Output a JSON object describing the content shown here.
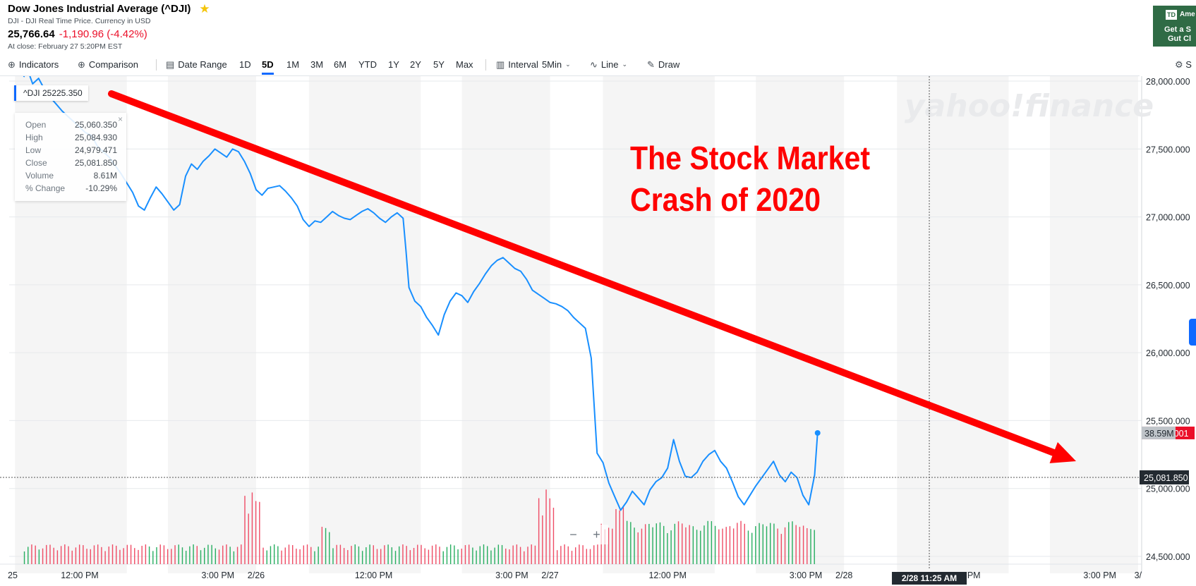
{
  "header": {
    "title": "Dow Jones Industrial Average (^DJI)",
    "subtitle": "DJI - DJI Real Time Price. Currency in USD",
    "price": "25,766.64",
    "change": "-1,190.96 (-4.42%)",
    "close_time": "At close: February 27 5:20PM EST"
  },
  "ad": {
    "logo": "TD",
    "brand": "Ame",
    "line1": "Get a S",
    "line2": "Gut Cl",
    "color": "#2f6b45"
  },
  "toolbar": {
    "indicators": "Indicators",
    "comparison": "Comparison",
    "date_range": "Date Range",
    "ranges": [
      "1D",
      "5D",
      "1M",
      "3M",
      "6M",
      "YTD",
      "1Y",
      "2Y",
      "5Y",
      "Max"
    ],
    "active_range": "5D",
    "interval_label": "Interval",
    "interval_value": "5Min",
    "line": "Line",
    "draw": "Draw",
    "settings": "S",
    "icons": [
      "plus-circle-icon",
      "calendar-icon",
      "candle-icon",
      "line-chart-icon",
      "pencil-icon",
      "gear-icon"
    ]
  },
  "symbol_pill": {
    "symbol": "^DJI",
    "value": "25225.350"
  },
  "ohlc": {
    "close_icon": "×",
    "rows": [
      {
        "label": "Open",
        "value": "25,060.350"
      },
      {
        "label": "High",
        "value": "25,084.930"
      },
      {
        "label": "Low",
        "value": "24,979.471"
      },
      {
        "label": "Close",
        "value": "25,081.850"
      },
      {
        "label": "Volume",
        "value": "8.61M"
      },
      {
        "label": "% Change",
        "value": "-10.29%"
      }
    ]
  },
  "zoom": {
    "minus": "−",
    "plus": "+"
  },
  "chart_data": {
    "type": "line",
    "watermark": "yahoo!finance",
    "annotation": [
      "The Stock Market",
      "Crash of 2020"
    ],
    "ylim": [
      24400,
      28400
    ],
    "y_ticks": [
      24500,
      25000,
      25500,
      26000,
      26500,
      27000,
      27500,
      28000
    ],
    "y_tick_labels": [
      "24,500.000",
      "25,000.000",
      "25,500.000",
      "26,000.000",
      "26,500.000",
      "27,000.000",
      "27,500.000",
      "28,000.000"
    ],
    "x_ticks": [
      {
        "t": -0.05,
        "label": "25"
      },
      {
        "t": 0.19,
        "label": "12:00 PM"
      },
      {
        "t": 0.66,
        "label": "3:00 PM"
      },
      {
        "t": 0.79,
        "label": "2/26"
      },
      {
        "t": 1.19,
        "label": "12:00 PM"
      },
      {
        "t": 1.66,
        "label": "3:00 PM"
      },
      {
        "t": 1.79,
        "label": "2/27"
      },
      {
        "t": 2.19,
        "label": "12:00 PM"
      },
      {
        "t": 2.66,
        "label": "3:00 PM"
      },
      {
        "t": 2.79,
        "label": "2/28"
      },
      {
        "t": 3.19,
        "label": "12:00 PM"
      },
      {
        "t": 3.66,
        "label": "3:00 PM"
      },
      {
        "t": 3.79,
        "label": "3/"
      }
    ],
    "shaded_bands": [
      [
        -0.03,
        0.35
      ],
      [
        0.49,
        0.79
      ],
      [
        0.97,
        1.35
      ],
      [
        1.49,
        1.79
      ],
      [
        1.97,
        2.35
      ],
      [
        2.49,
        2.79
      ],
      [
        2.97,
        3.35
      ],
      [
        3.49,
        3.79
      ]
    ],
    "crosshair": {
      "t": 3.08,
      "price": 25081.85,
      "price_label": "25,081.850",
      "time_label": "2/28 11:25 AM"
    },
    "last_price": 25409,
    "last_price_label": "25,409.001",
    "volume_label": "38.59M",
    "colors": {
      "line": "#188fff",
      "arrow": "#ff0000",
      "annotation": "#ff0000",
      "up_volume": "#27ae60",
      "down_volume": "#ef4c65",
      "band": "#f5f5f5"
    },
    "series": [
      {
        "values": [
          [
            0.0,
            28030
          ],
          [
            0.01,
            28100
          ],
          [
            0.03,
            27980
          ],
          [
            0.05,
            28020
          ],
          [
            0.07,
            27940
          ],
          [
            0.09,
            27880
          ],
          [
            0.11,
            27830
          ],
          [
            0.13,
            27780
          ],
          [
            0.15,
            27740
          ],
          [
            0.17,
            27700
          ],
          [
            0.19,
            27660
          ],
          [
            0.21,
            27620
          ],
          [
            0.23,
            27600
          ],
          [
            0.25,
            27520
          ],
          [
            0.27,
            27480
          ],
          [
            0.29,
            27440
          ],
          [
            0.31,
            27380
          ],
          [
            0.33,
            27320
          ],
          [
            0.35,
            27250
          ],
          [
            0.37,
            27180
          ],
          [
            0.39,
            27080
          ],
          [
            0.41,
            27050
          ],
          [
            0.43,
            27140
          ],
          [
            0.45,
            27220
          ],
          [
            0.47,
            27170
          ],
          [
            0.49,
            27110
          ],
          [
            0.51,
            27050
          ],
          [
            0.53,
            27090
          ],
          [
            0.55,
            27300
          ],
          [
            0.57,
            27390
          ],
          [
            0.59,
            27350
          ],
          [
            0.61,
            27410
          ],
          [
            0.63,
            27450
          ],
          [
            0.65,
            27500
          ],
          [
            0.67,
            27470
          ],
          [
            0.69,
            27440
          ],
          [
            0.71,
            27500
          ],
          [
            0.73,
            27480
          ],
          [
            0.75,
            27410
          ],
          [
            0.77,
            27320
          ],
          [
            0.79,
            27200
          ],
          [
            0.81,
            27160
          ],
          [
            0.83,
            27210
          ],
          [
            0.85,
            27220
          ],
          [
            0.87,
            27230
          ],
          [
            0.89,
            27190
          ],
          [
            0.91,
            27140
          ],
          [
            0.93,
            27080
          ],
          [
            0.95,
            26980
          ],
          [
            0.97,
            26930
          ],
          [
            0.99,
            26970
          ],
          [
            1.01,
            26960
          ],
          [
            1.03,
            27000
          ],
          [
            1.05,
            27040
          ],
          [
            1.07,
            27010
          ],
          [
            1.09,
            26990
          ],
          [
            1.11,
            26980
          ],
          [
            1.13,
            27010
          ],
          [
            1.15,
            27040
          ],
          [
            1.17,
            27060
          ],
          [
            1.19,
            27030
          ],
          [
            1.21,
            26990
          ],
          [
            1.23,
            26960
          ],
          [
            1.25,
            27000
          ],
          [
            1.27,
            27030
          ],
          [
            1.29,
            26990
          ],
          [
            1.3,
            26750
          ],
          [
            1.31,
            26480
          ],
          [
            1.33,
            26380
          ],
          [
            1.35,
            26340
          ],
          [
            1.37,
            26260
          ],
          [
            1.39,
            26200
          ],
          [
            1.41,
            26130
          ],
          [
            1.43,
            26280
          ],
          [
            1.45,
            26380
          ],
          [
            1.47,
            26440
          ],
          [
            1.49,
            26420
          ],
          [
            1.51,
            26370
          ],
          [
            1.53,
            26450
          ],
          [
            1.55,
            26510
          ],
          [
            1.57,
            26580
          ],
          [
            1.59,
            26640
          ],
          [
            1.61,
            26680
          ],
          [
            1.63,
            26700
          ],
          [
            1.65,
            26660
          ],
          [
            1.67,
            26620
          ],
          [
            1.69,
            26600
          ],
          [
            1.71,
            26540
          ],
          [
            1.73,
            26460
          ],
          [
            1.75,
            26430
          ],
          [
            1.77,
            26400
          ],
          [
            1.79,
            26370
          ],
          [
            1.81,
            26360
          ],
          [
            1.83,
            26340
          ],
          [
            1.85,
            26310
          ],
          [
            1.87,
            26260
          ],
          [
            1.89,
            26220
          ],
          [
            1.91,
            26180
          ],
          [
            1.93,
            25960
          ],
          [
            1.95,
            25260
          ],
          [
            1.97,
            25190
          ],
          [
            1.99,
            25040
          ],
          [
            2.01,
            24940
          ],
          [
            2.03,
            24840
          ],
          [
            2.05,
            24900
          ],
          [
            2.07,
            24980
          ],
          [
            2.09,
            24930
          ],
          [
            2.11,
            24880
          ],
          [
            2.13,
            24990
          ],
          [
            2.15,
            25050
          ],
          [
            2.17,
            25080
          ],
          [
            2.19,
            25150
          ],
          [
            2.21,
            25360
          ],
          [
            2.23,
            25200
          ],
          [
            2.25,
            25090
          ],
          [
            2.27,
            25080
          ],
          [
            2.29,
            25120
          ],
          [
            2.31,
            25200
          ],
          [
            2.33,
            25250
          ],
          [
            2.35,
            25280
          ],
          [
            2.37,
            25200
          ],
          [
            2.39,
            25150
          ],
          [
            2.41,
            25050
          ],
          [
            2.43,
            24940
          ],
          [
            2.45,
            24880
          ],
          [
            2.47,
            24950
          ],
          [
            2.49,
            25020
          ],
          [
            2.51,
            25080
          ],
          [
            2.53,
            25140
          ],
          [
            2.55,
            25200
          ],
          [
            2.57,
            25100
          ],
          [
            2.59,
            25050
          ],
          [
            2.61,
            25120
          ],
          [
            2.63,
            25080
          ],
          [
            2.65,
            24950
          ],
          [
            2.67,
            24880
          ],
          [
            2.69,
            25100
          ],
          [
            2.7,
            25409
          ]
        ]
      }
    ]
  }
}
